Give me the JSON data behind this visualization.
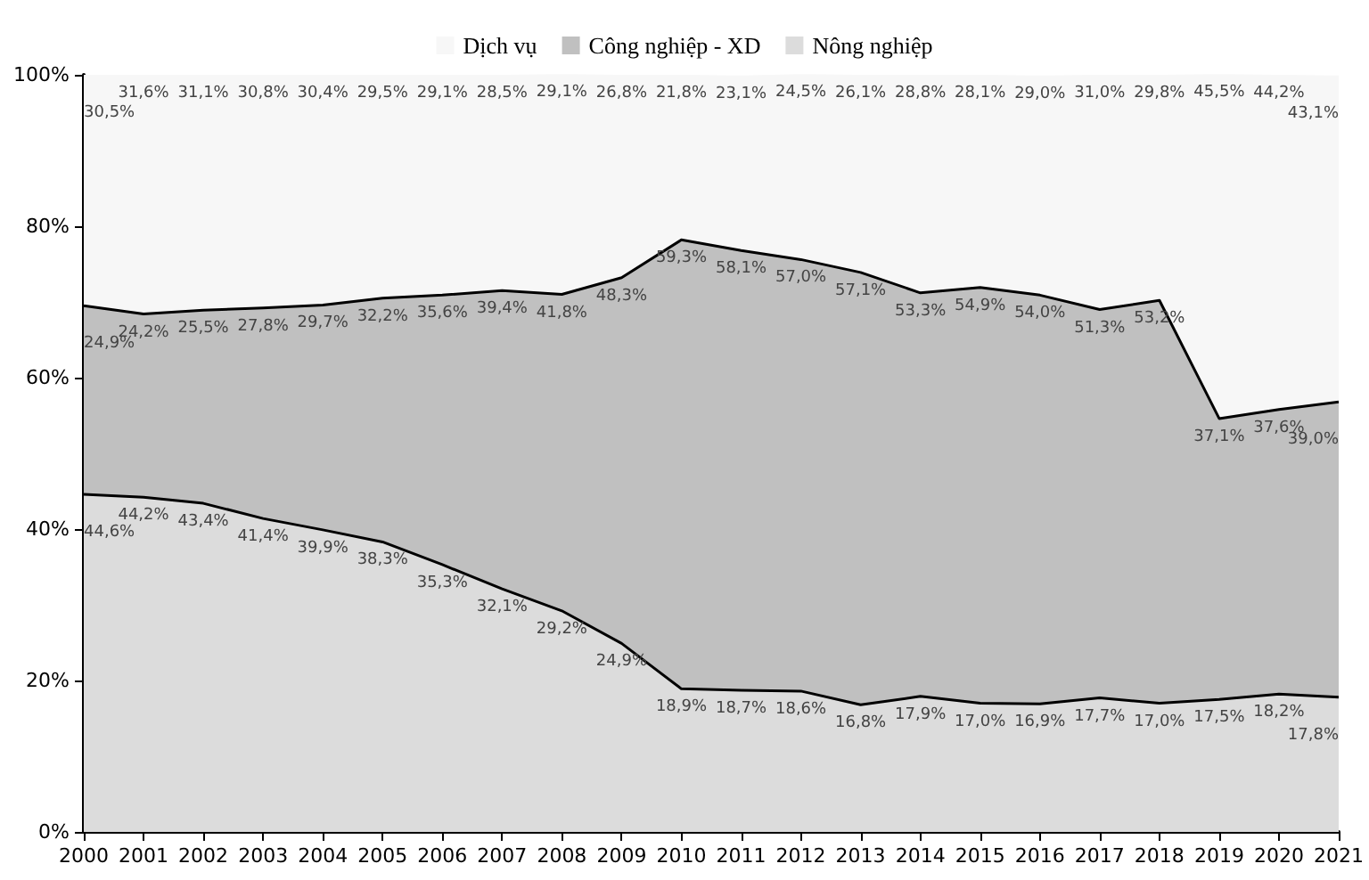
{
  "chart_data": {
    "type": "area",
    "stacked": true,
    "categories": [
      "2000",
      "2001",
      "2002",
      "2003",
      "2004",
      "2005",
      "2006",
      "2007",
      "2008",
      "2009",
      "2010",
      "2011",
      "2012",
      "2013",
      "2014",
      "2015",
      "2016",
      "2017",
      "2018",
      "2019",
      "2020",
      "2021"
    ],
    "series": [
      {
        "name": "Nông nghiệp",
        "color": "#dcdcdc",
        "values": [
          44.6,
          44.2,
          43.4,
          41.4,
          39.9,
          38.3,
          35.3,
          32.1,
          29.2,
          24.9,
          18.9,
          18.7,
          18.6,
          16.8,
          17.9,
          17.0,
          16.9,
          17.7,
          17.0,
          17.5,
          18.2,
          17.8
        ],
        "value_labels": [
          "44,6%",
          "44,2%",
          "43,4%",
          "41,4%",
          "39,9%",
          "38,3%",
          "35,3%",
          "32,1%",
          "29,2%",
          "24,9%",
          "18,9%",
          "18,7%",
          "18,6%",
          "16,8%",
          "17,9%",
          "17,0%",
          "16,9%",
          "17,7%",
          "17,0%",
          "17,5%",
          "18,2%",
          "17,8%"
        ]
      },
      {
        "name": "Công nghiệp - XD",
        "color": "#c0c0c0",
        "values": [
          24.9,
          24.2,
          25.5,
          27.8,
          29.7,
          32.2,
          35.6,
          39.4,
          41.8,
          48.3,
          59.3,
          58.1,
          57.0,
          57.1,
          53.3,
          54.9,
          54.0,
          51.3,
          53.2,
          37.1,
          37.6,
          39.0
        ],
        "value_labels": [
          "24,9%",
          "24,2%",
          "25,5%",
          "27,8%",
          "29,7%",
          "32,2%",
          "35,6%",
          "39,4%",
          "41,8%",
          "48,3%",
          "59,3%",
          "58,1%",
          "57,0%",
          "57,1%",
          "53,3%",
          "54,9%",
          "54,0%",
          "51,3%",
          "53,2%",
          "37,1%",
          "37,6%",
          "39,0%"
        ]
      },
      {
        "name": "Dịch vụ",
        "color": "#f7f7f7",
        "values": [
          30.5,
          31.6,
          31.1,
          30.8,
          30.4,
          29.5,
          29.1,
          28.5,
          29.1,
          26.8,
          21.8,
          23.1,
          24.5,
          26.1,
          28.8,
          28.1,
          29.0,
          31.0,
          29.8,
          45.5,
          44.2,
          43.1
        ],
        "value_labels": [
          "30,5%",
          "31,6%",
          "31,1%",
          "30,8%",
          "30,4%",
          "29,5%",
          "29,1%",
          "28,5%",
          "29,1%",
          "26,8%",
          "21,8%",
          "23,1%",
          "24,5%",
          "26,1%",
          "28,8%",
          "28,1%",
          "29,0%",
          "31,0%",
          "29,8%",
          "45,5%",
          "44,2%",
          "43,1%"
        ]
      }
    ],
    "ylim": [
      0,
      100
    ],
    "yticks": [
      {
        "value": 0,
        "label": "0%"
      },
      {
        "value": 20,
        "label": "20%"
      },
      {
        "value": 40,
        "label": "40%"
      },
      {
        "value": 60,
        "label": "60%"
      },
      {
        "value": 80,
        "label": "80%"
      },
      {
        "value": 100,
        "label": "100%"
      }
    ],
    "legend": "top",
    "grid": false
  }
}
